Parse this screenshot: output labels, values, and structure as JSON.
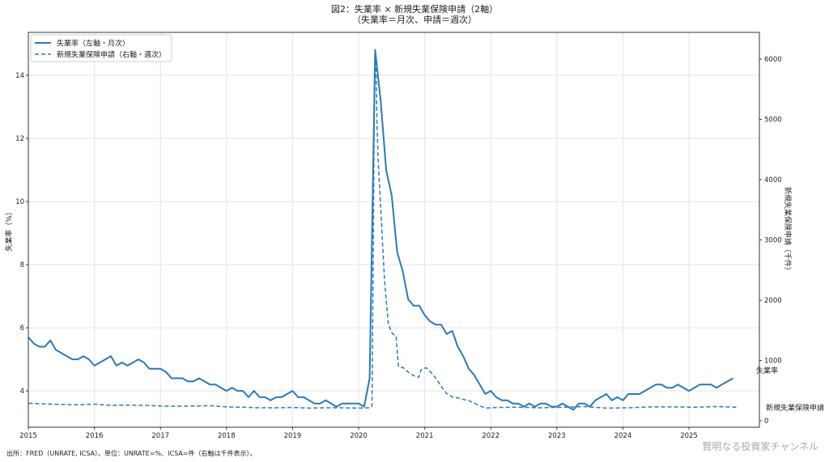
{
  "chart_data": {
    "type": "line",
    "title": "図2：失業率 × 新規失業保険申請（2軸）",
    "subtitle": "（失業率＝月次、申請＝週次）",
    "ylabel": "失業率（%）",
    "y2label": "新規失業保険申請（千件）",
    "xlim": [
      "2015-01-01",
      "2026-01-25"
    ],
    "ylim": [
      2.85,
      15.36
    ],
    "y2lim": [
      -107,
      6443
    ],
    "grid": true,
    "legend_placement": "top-left",
    "x_ticks": [
      "2015",
      "2016",
      "2017",
      "2018",
      "2019",
      "2020",
      "2021",
      "2022",
      "2023",
      "2024",
      "2025"
    ],
    "y_ticks": [
      4,
      6,
      8,
      10,
      12,
      14
    ],
    "y2_ticks": [
      0,
      1000,
      2000,
      3000,
      4000,
      5000,
      6000
    ],
    "color": "#2a7ab9",
    "series": [
      {
        "name": "失業率（左軸・月次）",
        "end_label": "失業率",
        "axis": "left",
        "style": "solid",
        "x": [
          "2015-01",
          "2015-02",
          "2015-03",
          "2015-04",
          "2015-05",
          "2015-06",
          "2015-07",
          "2015-08",
          "2015-09",
          "2015-10",
          "2015-11",
          "2015-12",
          "2016-01",
          "2016-02",
          "2016-03",
          "2016-04",
          "2016-05",
          "2016-06",
          "2016-07",
          "2016-08",
          "2016-09",
          "2016-10",
          "2016-11",
          "2016-12",
          "2017-01",
          "2017-02",
          "2017-03",
          "2017-04",
          "2017-05",
          "2017-06",
          "2017-07",
          "2017-08",
          "2017-09",
          "2017-10",
          "2017-11",
          "2017-12",
          "2018-01",
          "2018-02",
          "2018-03",
          "2018-04",
          "2018-05",
          "2018-06",
          "2018-07",
          "2018-08",
          "2018-09",
          "2018-10",
          "2018-11",
          "2018-12",
          "2019-01",
          "2019-02",
          "2019-03",
          "2019-04",
          "2019-05",
          "2019-06",
          "2019-07",
          "2019-08",
          "2019-09",
          "2019-10",
          "2019-11",
          "2019-12",
          "2020-01",
          "2020-02",
          "2020-03",
          "2020-04",
          "2020-05",
          "2020-06",
          "2020-07",
          "2020-08",
          "2020-09",
          "2020-10",
          "2020-11",
          "2020-12",
          "2021-01",
          "2021-02",
          "2021-03",
          "2021-04",
          "2021-05",
          "2021-06",
          "2021-07",
          "2021-08",
          "2021-09",
          "2021-10",
          "2021-11",
          "2021-12",
          "2022-01",
          "2022-02",
          "2022-03",
          "2022-04",
          "2022-05",
          "2022-06",
          "2022-07",
          "2022-08",
          "2022-09",
          "2022-10",
          "2022-11",
          "2022-12",
          "2023-01",
          "2023-02",
          "2023-03",
          "2023-04",
          "2023-05",
          "2023-06",
          "2023-07",
          "2023-08",
          "2023-09",
          "2023-10",
          "2023-11",
          "2023-12",
          "2024-01",
          "2024-02",
          "2024-03",
          "2024-04",
          "2024-05",
          "2024-06",
          "2024-07",
          "2024-08",
          "2024-09",
          "2024-10",
          "2024-11",
          "2024-12",
          "2025-01",
          "2025-02",
          "2025-03",
          "2025-04",
          "2025-05",
          "2025-06",
          "2025-07",
          "2025-08",
          "2025-09"
        ],
        "values": [
          5.7,
          5.5,
          5.4,
          5.4,
          5.6,
          5.3,
          5.2,
          5.1,
          5.0,
          5.0,
          5.1,
          5.0,
          4.8,
          4.9,
          5.0,
          5.1,
          4.8,
          4.9,
          4.8,
          4.9,
          5.0,
          4.9,
          4.7,
          4.7,
          4.7,
          4.6,
          4.4,
          4.4,
          4.4,
          4.3,
          4.3,
          4.4,
          4.3,
          4.2,
          4.2,
          4.1,
          4.0,
          4.1,
          4.0,
          4.0,
          3.8,
          4.0,
          3.8,
          3.8,
          3.7,
          3.8,
          3.8,
          3.9,
          4.0,
          3.8,
          3.8,
          3.7,
          3.6,
          3.6,
          3.7,
          3.6,
          3.5,
          3.6,
          3.6,
          3.6,
          3.6,
          3.5,
          4.4,
          14.8,
          13.2,
          11.0,
          10.2,
          8.4,
          7.8,
          6.9,
          6.7,
          6.7,
          6.4,
          6.2,
          6.1,
          6.1,
          5.8,
          5.9,
          5.4,
          5.1,
          4.7,
          4.5,
          4.2,
          3.9,
          4.0,
          3.8,
          3.7,
          3.7,
          3.6,
          3.6,
          3.5,
          3.6,
          3.5,
          3.6,
          3.6,
          3.5,
          3.5,
          3.6,
          3.5,
          3.4,
          3.6,
          3.6,
          3.5,
          3.7,
          3.8,
          3.9,
          3.7,
          3.8,
          3.7,
          3.9,
          3.9,
          3.9,
          4.0,
          4.1,
          4.2,
          4.2,
          4.1,
          4.1,
          4.2,
          4.1,
          4.0,
          4.1,
          4.2,
          4.2,
          4.2,
          4.1,
          4.2,
          4.3,
          4.4
        ]
      },
      {
        "name": "新規失業保険申請（右軸・週次）",
        "end_label": "新規失業保険申請",
        "axis": "right",
        "style": "dashed",
        "x": [
          "2015-01-03",
          "2015-04-01",
          "2015-07-01",
          "2015-10-01",
          "2016-01-01",
          "2016-04-01",
          "2016-07-01",
          "2016-10-01",
          "2017-01-01",
          "2017-04-01",
          "2017-07-01",
          "2017-10-01",
          "2018-01-01",
          "2018-04-01",
          "2018-07-01",
          "2018-10-01",
          "2019-01-01",
          "2019-04-01",
          "2019-07-01",
          "2019-10-01",
          "2020-01-01",
          "2020-03-07",
          "2020-03-14",
          "2020-03-21",
          "2020-03-28",
          "2020-04-04",
          "2020-04-11",
          "2020-04-18",
          "2020-05-02",
          "2020-05-23",
          "2020-06-13",
          "2020-07-04",
          "2020-07-25",
          "2020-08-08",
          "2020-09-05",
          "2020-10-03",
          "2020-10-31",
          "2020-11-28",
          "2020-12-12",
          "2021-01-09",
          "2021-02-06",
          "2021-03-06",
          "2021-04-03",
          "2021-05-01",
          "2021-06-05",
          "2021-07-03",
          "2021-08-07",
          "2021-09-04",
          "2021-10-02",
          "2021-11-06",
          "2021-12-04",
          "2022-02-01",
          "2022-06-01",
          "2022-10-01",
          "2023-02-01",
          "2023-06-01",
          "2023-10-01",
          "2024-02-01",
          "2024-06-01",
          "2024-10-01",
          "2025-02-01",
          "2025-06-01",
          "2025-09-20"
        ],
        "values": [
          290,
          280,
          270,
          265,
          275,
          255,
          260,
          255,
          245,
          240,
          245,
          250,
          230,
          225,
          215,
          215,
          220,
          210,
          215,
          215,
          210,
          215,
          250,
          2900,
          5900,
          6100,
          4900,
          4300,
          3500,
          2300,
          1600,
          1450,
          1400,
          900,
          880,
          800,
          750,
          720,
          850,
          880,
          800,
          690,
          560,
          450,
          390,
          380,
          350,
          330,
          290,
          240,
          210,
          220,
          225,
          215,
          225,
          235,
          210,
          215,
          230,
          230,
          225,
          235,
          225
        ]
      }
    ]
  },
  "footer": {
    "source": "出所：FRED（UNRATE, ICSA）。単位：UNRATE=%、ICSA=件（右軸は千件表示）。",
    "watermark": "賢明なる投資家チャンネル"
  }
}
